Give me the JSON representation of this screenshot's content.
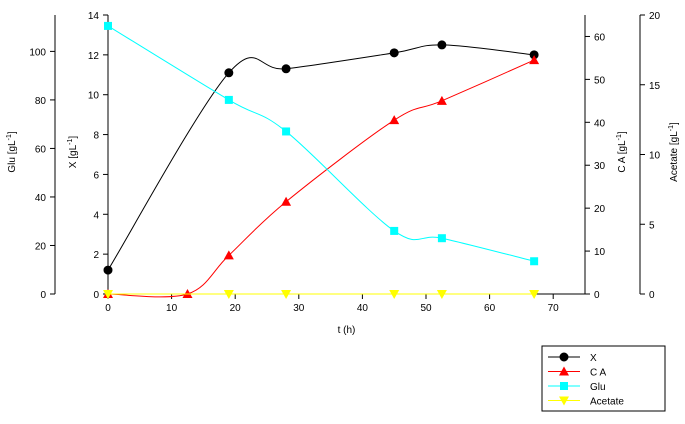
{
  "chart_data": {
    "type": "line",
    "x_axis": {
      "label": "t (h)",
      "range": [
        0,
        75
      ],
      "ticks": [
        0,
        10,
        20,
        30,
        40,
        50,
        60,
        70
      ]
    },
    "axes": {
      "glu": {
        "label_main": "Glu",
        "label_unit": "[gL",
        "sup": "-1",
        "close": "]",
        "range": [
          0,
          115
        ],
        "ticks": [
          0,
          20,
          40,
          60,
          80,
          100
        ]
      },
      "x": {
        "label_main": "X",
        "label_unit": "[gL",
        "sup": "-1",
        "close": "]",
        "range": [
          0,
          14
        ],
        "ticks": [
          0,
          2,
          4,
          6,
          8,
          10,
          12,
          14
        ]
      },
      "ca": {
        "label_main": "C A",
        "label_unit": "[gL",
        "sup": "-1",
        "close": "]",
        "range": [
          0,
          65
        ],
        "ticks": [
          0,
          10,
          20,
          30,
          40,
          50,
          60
        ]
      },
      "acetate": {
        "label_main": "Acetate",
        "label_unit": "[gL",
        "sup": "-1",
        "close": "]",
        "range": [
          0,
          20
        ],
        "ticks": [
          0,
          5,
          10,
          15,
          20
        ]
      }
    },
    "series": [
      {
        "name": "X",
        "axis": "x",
        "color": "#000000",
        "marker": "circle",
        "x": [
          0,
          19,
          28,
          45,
          52.5,
          67
        ],
        "y": [
          1.2,
          11.1,
          11.3,
          12.1,
          12.5,
          12.0
        ]
      },
      {
        "name": "C A",
        "axis": "ca",
        "color": "#ff0000",
        "marker": "triangle-up",
        "x": [
          0,
          12.5,
          19,
          28,
          45,
          52.5,
          67
        ],
        "y": [
          0,
          0,
          9,
          21.5,
          40.5,
          45,
          54.5
        ]
      },
      {
        "name": "Glu",
        "axis": "glu",
        "color": "#00ffff",
        "marker": "square",
        "x": [
          0,
          19,
          28,
          45,
          52.5,
          67
        ],
        "y": [
          110.5,
          80,
          67,
          26,
          23,
          13.5
        ]
      },
      {
        "name": "Acetate",
        "axis": "acetate",
        "color": "#ffff00",
        "marker": "triangle-down",
        "x": [
          0,
          19,
          28,
          45,
          52.5,
          67
        ],
        "y": [
          0,
          0,
          0,
          0,
          0,
          0
        ]
      }
    ],
    "legend_position": "bottom-right"
  }
}
